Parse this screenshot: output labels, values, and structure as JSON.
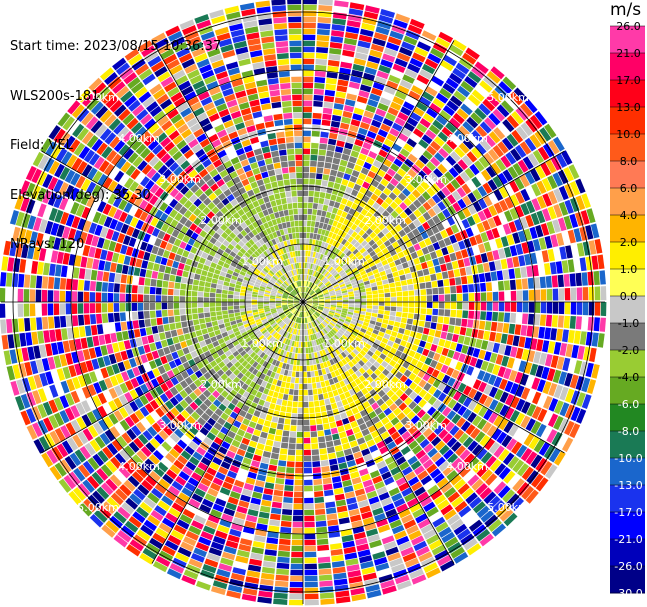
{
  "header": {
    "start_time": "Start time: 2023/08/15 10:36:37",
    "instrument": "WLS200s-181",
    "field": "Field: VEL",
    "elevation": "Elevation(deg): 35.30",
    "nrays": "NRays: 120"
  },
  "ppi": {
    "range_labels": [
      "1.00km",
      "2.00km",
      "3.00km",
      "4.00km",
      "5.00km"
    ],
    "label_color": "#ffffff"
  },
  "colorbar": {
    "unit": "m/s",
    "ticks": [
      "26.0",
      "21.0",
      "17.0",
      "13.0",
      "10.0",
      "8.0",
      "6.0",
      "4.0",
      "2.0",
      "1.0",
      "0.0",
      "-1.0",
      "-2.0",
      "-4.0",
      "-6.0",
      "-8.0",
      "-10.0",
      "-13.0",
      "-17.0",
      "-21.0",
      "-26.0",
      "-30.0"
    ],
    "colors": [
      "#ff3aa8",
      "#ff0066",
      "#ff0019",
      "#ff2f00",
      "#ff5a1a",
      "#ff7a55",
      "#ff9f4a",
      "#ffb400",
      "#ffee00",
      "#ffff55",
      "#c8c8c8",
      "#7a7a7a",
      "#99cc33",
      "#66aa22",
      "#228822",
      "#1a7a55",
      "#1a66cc",
      "#1a33ee",
      "#0000ff",
      "#0000bb",
      "#000088",
      "#000044"
    ]
  }
}
